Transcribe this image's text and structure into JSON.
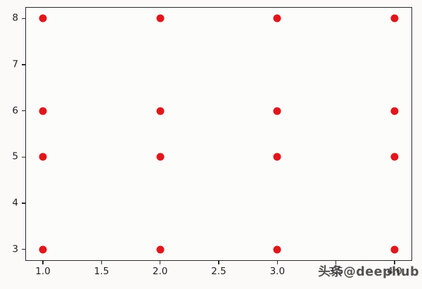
{
  "figure": {
    "background": "#fbfaf9",
    "plot_background": "#fcfcfb",
    "border_color": "#2a2a2a",
    "tick_color": "#2a2a2a",
    "tick_label_color": "#1f1f1f"
  },
  "chart_data": {
    "type": "scatter",
    "title": "",
    "xlabel": "",
    "ylabel": "",
    "xlim": [
      0.85,
      4.15
    ],
    "ylim": [
      2.75,
      8.25
    ],
    "grid": false,
    "legend": null,
    "x_ticks": [
      1.0,
      1.5,
      2.0,
      2.5,
      3.0,
      3.5,
      4.0
    ],
    "x_tick_labels": [
      "1.0",
      "1.5",
      "2.0",
      "2.5",
      "3.0",
      "3.5",
      "4.0"
    ],
    "y_ticks": [
      3,
      4,
      5,
      6,
      7,
      8
    ],
    "y_tick_labels": [
      "3",
      "4",
      "5",
      "6",
      "7",
      "8"
    ],
    "marker": {
      "shape": "circle",
      "color": "#e2161a",
      "radius_px": 5.5
    },
    "points": [
      [
        1,
        3
      ],
      [
        1,
        5
      ],
      [
        1,
        6
      ],
      [
        1,
        8
      ],
      [
        2,
        3
      ],
      [
        2,
        5
      ],
      [
        2,
        6
      ],
      [
        2,
        8
      ],
      [
        3,
        3
      ],
      [
        3,
        5
      ],
      [
        3,
        6
      ],
      [
        3,
        8
      ],
      [
        4,
        3
      ],
      [
        4,
        5
      ],
      [
        4,
        6
      ],
      [
        4,
        8
      ]
    ]
  },
  "watermark": {
    "text": "头条@deephub",
    "color": "#3c3b3a"
  }
}
